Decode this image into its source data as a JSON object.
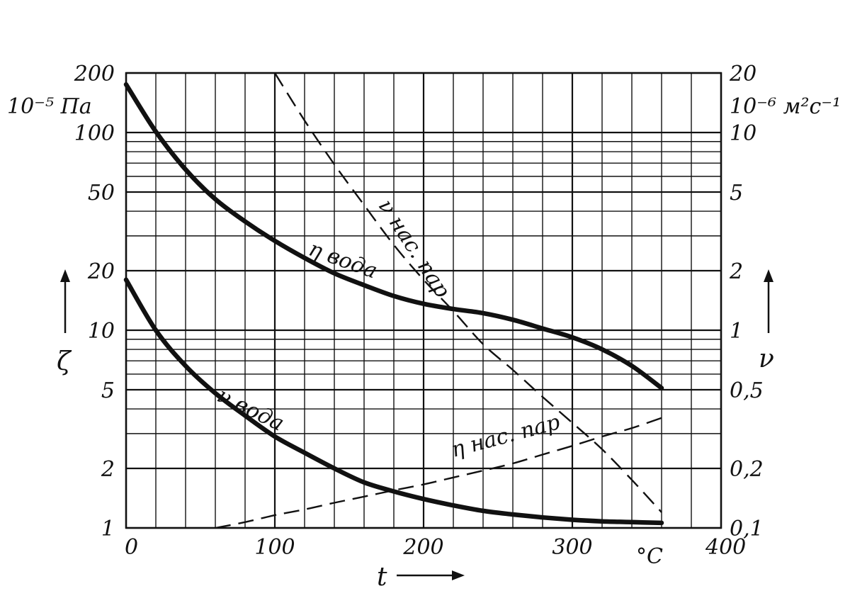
{
  "chart_data": {
    "type": "line",
    "title": "",
    "x_axis": {
      "label": "t",
      "unit": "°C",
      "range": [
        0,
        400
      ],
      "ticks": [
        0,
        100,
        200,
        300,
        400
      ],
      "tick_labels": [
        "0",
        "100",
        "200",
        "300",
        "400"
      ],
      "grid_step": 20
    },
    "left_axis": {
      "label": "ζ",
      "unit": "10⁻⁵ Па",
      "scale": "log",
      "range": [
        1,
        200
      ],
      "ticks": [
        1,
        2,
        5,
        10,
        20,
        50,
        100,
        200
      ],
      "tick_labels": [
        "1",
        "2",
        "5",
        "10",
        "20",
        "50",
        "100",
        "200"
      ]
    },
    "right_axis": {
      "label": "ν",
      "unit": "10⁻⁶ м²с⁻¹",
      "scale": "log",
      "range": [
        0.1,
        20
      ],
      "ticks": [
        0.1,
        0.2,
        0.5,
        1,
        2,
        5,
        10,
        20
      ],
      "tick_labels": [
        "0,1",
        "0,2",
        "0,5",
        "1",
        "2",
        "5",
        "10",
        "20"
      ]
    },
    "grid": true,
    "series": [
      {
        "name": "η вода",
        "axis": "left",
        "style": "solid-thick",
        "x": [
          0,
          20,
          40,
          60,
          80,
          100,
          120,
          140,
          160,
          180,
          200,
          220,
          240,
          260,
          280,
          300,
          320,
          340,
          360
        ],
        "y": [
          175,
          101,
          65,
          46,
          35.5,
          28.3,
          23.2,
          19.4,
          16.9,
          14.9,
          13.6,
          12.8,
          12.2,
          11.3,
          10.2,
          9.2,
          8,
          6.6,
          5.1
        ]
      },
      {
        "name": "ν вода",
        "axis": "right",
        "style": "solid-thick",
        "x": [
          0,
          20,
          40,
          60,
          80,
          100,
          120,
          140,
          160,
          180,
          200,
          220,
          240,
          260,
          280,
          300,
          320,
          340,
          360
        ],
        "y": [
          1.8,
          1.0,
          0.66,
          0.48,
          0.37,
          0.29,
          0.24,
          0.2,
          0.17,
          0.153,
          0.14,
          0.13,
          0.122,
          0.117,
          0.113,
          0.11,
          0.108,
          0.107,
          0.106
        ]
      },
      {
        "name": "ν нас. пар",
        "axis": "right",
        "style": "dashed",
        "x": [
          100,
          120,
          140,
          160,
          180,
          200,
          220,
          240,
          260,
          280,
          300,
          320,
          340,
          360
        ],
        "y": [
          20,
          11.5,
          6.9,
          4.3,
          2.7,
          1.8,
          1.25,
          0.85,
          0.63,
          0.46,
          0.34,
          0.25,
          0.175,
          0.12
        ]
      },
      {
        "name": "η нас. пар",
        "axis": "left",
        "style": "dashed",
        "x": [
          60,
          80,
          100,
          120,
          140,
          160,
          180,
          200,
          220,
          240,
          260,
          280,
          300,
          320,
          340,
          360
        ],
        "y": [
          1.0,
          1.07,
          1.16,
          1.24,
          1.34,
          1.44,
          1.55,
          1.66,
          1.8,
          1.95,
          2.12,
          2.35,
          2.6,
          2.9,
          3.2,
          3.6
        ]
      }
    ]
  }
}
